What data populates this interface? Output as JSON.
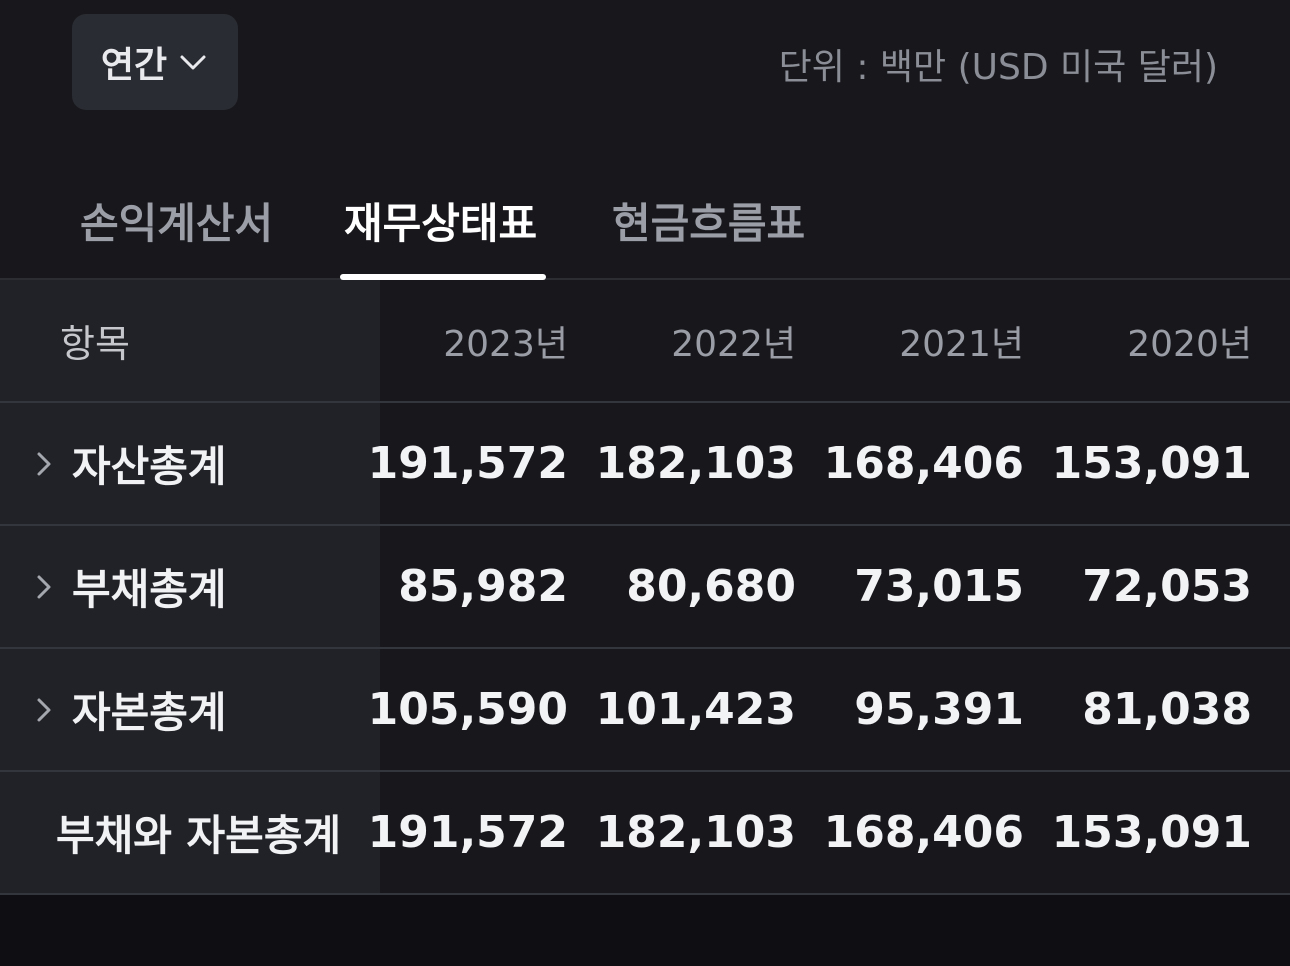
{
  "period_selector": {
    "label": "연간"
  },
  "unit": "단위 : 백만 (USD 미국 달러)",
  "tabs": [
    {
      "label": "손익계산서",
      "active": false
    },
    {
      "label": "재무상태표",
      "active": true
    },
    {
      "label": "현금흐름표",
      "active": false
    }
  ],
  "table": {
    "header": {
      "item": "항목",
      "years": [
        "2023년",
        "2022년",
        "2021년",
        "2020년"
      ]
    },
    "rows": [
      {
        "label": "자산총계",
        "expandable": true,
        "values": [
          "191,572",
          "182,103",
          "168,406",
          "153,091"
        ]
      },
      {
        "label": "부채총계",
        "expandable": true,
        "values": [
          "85,982",
          "80,680",
          "73,015",
          "72,053"
        ]
      },
      {
        "label": "자본총계",
        "expandable": true,
        "values": [
          "105,590",
          "101,423",
          "95,391",
          "81,038"
        ]
      },
      {
        "label": "부채와 자본총계",
        "expandable": false,
        "values": [
          "191,572",
          "182,103",
          "168,406",
          "153,091"
        ]
      }
    ]
  },
  "colors": {
    "background": "#17171c",
    "label_column": "#212228",
    "accent_underline": "#ffffff"
  },
  "icons": {
    "dropdown": "chevron-down-icon",
    "expand": "chevron-right-icon"
  }
}
